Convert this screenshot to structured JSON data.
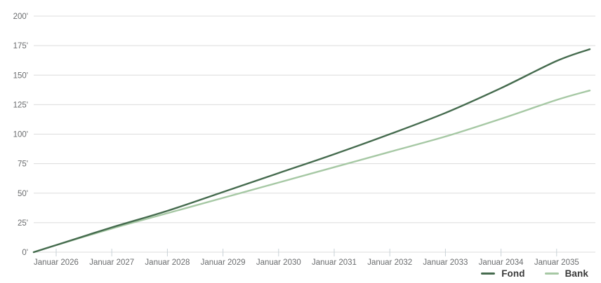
{
  "chart_data": {
    "type": "line",
    "title": "",
    "xlabel": "",
    "ylabel": "",
    "categories": [
      "Januar 2026",
      "Januar 2027",
      "Januar 2028",
      "Januar 2029",
      "Januar 2030",
      "Januar 2031",
      "Januar 2032",
      "Januar 2033",
      "Januar 2034",
      "Januar 2035"
    ],
    "y_tick_labels": [
      "0'",
      "25'",
      "50'",
      "75'",
      "100'",
      "125'",
      "150'",
      "175'",
      "200'"
    ],
    "y_tick_values": [
      0,
      25,
      50,
      75,
      100,
      125,
      150,
      175,
      200
    ],
    "ylim": [
      0,
      200
    ],
    "grid": "horizontal",
    "legend_position": "bottom-right",
    "series": [
      {
        "name": "Fond",
        "color": "#456b4e",
        "start_value": 0,
        "values": [
          6,
          21,
          35,
          51,
          67,
          83,
          100,
          118,
          139,
          162
        ],
        "end_value": 172
      },
      {
        "name": "Bank",
        "color": "#a6c8a4",
        "start_value": 0,
        "values": [
          6,
          20,
          33,
          46,
          59,
          72,
          85,
          98,
          113,
          129
        ],
        "end_value": 137
      }
    ],
    "colors": {
      "gridline": "#dcdcdc",
      "axis_tick": "#c9d2d7",
      "tick_label": "#6a6c6e"
    }
  }
}
